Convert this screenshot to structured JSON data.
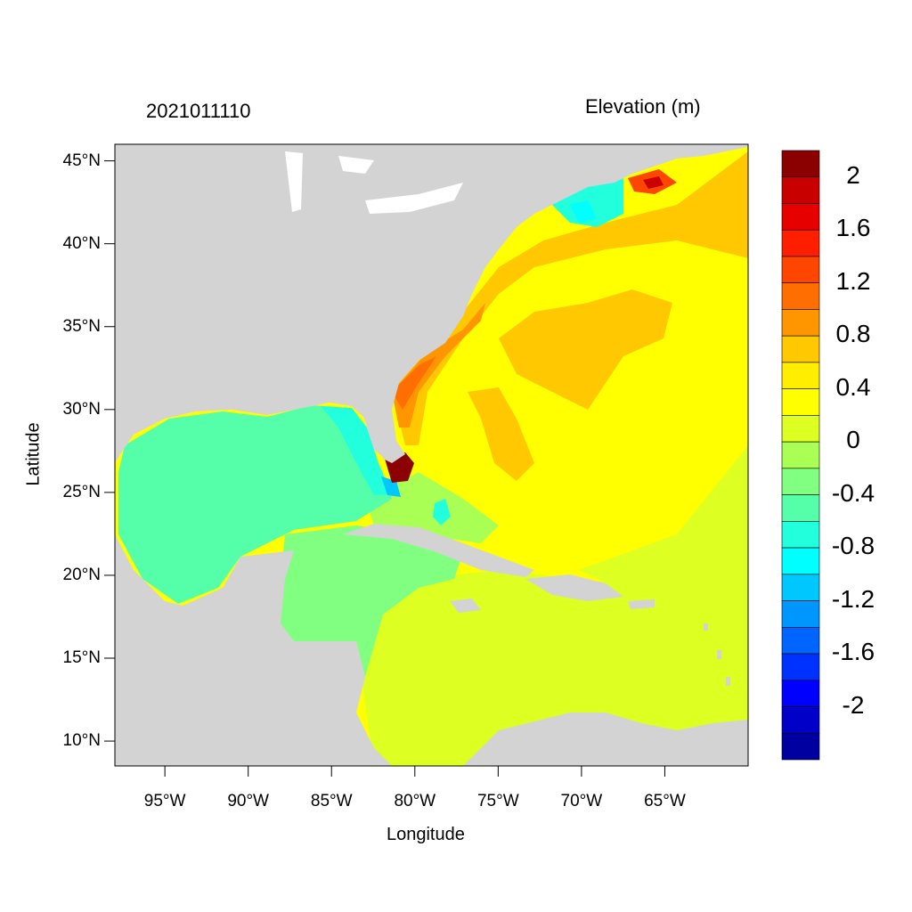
{
  "map": {
    "left_title": "2021011110",
    "right_title": "Elevation (m)",
    "x_axis_title": "Longitude",
    "y_axis_title": "Latitude",
    "lat_ticks": [
      "45°N",
      "40°N",
      "35°N",
      "30°N",
      "25°N",
      "20°N",
      "15°N",
      "10°N"
    ],
    "lon_ticks": [
      "95°W",
      "90°W",
      "85°W",
      "80°W",
      "75°W",
      "70°W",
      "65°W"
    ],
    "extent": {
      "lon_min": -98,
      "lon_max": -60,
      "lat_min": 8.5,
      "lat_max": 46
    },
    "land_color": "#d3d3d3",
    "colorbar": {
      "labels": [
        "2",
        "1.6",
        "1.2",
        "0.8",
        "0.4",
        "0",
        "-0.4",
        "-0.8",
        "-1.2",
        "-1.6",
        "-2"
      ],
      "colors_top_to_bottom": [
        "#8b0000",
        "#c80000",
        "#e60000",
        "#ff1e00",
        "#ff4600",
        "#ff6e00",
        "#ff9600",
        "#ffc800",
        "#ffee00",
        "#ffff00",
        "#ddff22",
        "#aaff55",
        "#80ff80",
        "#55ffaa",
        "#22ffdd",
        "#00ffff",
        "#00c8ff",
        "#0096ff",
        "#0064ff",
        "#0032ff",
        "#0000ff",
        "#0000c8",
        "#0000a0"
      ]
    }
  }
}
